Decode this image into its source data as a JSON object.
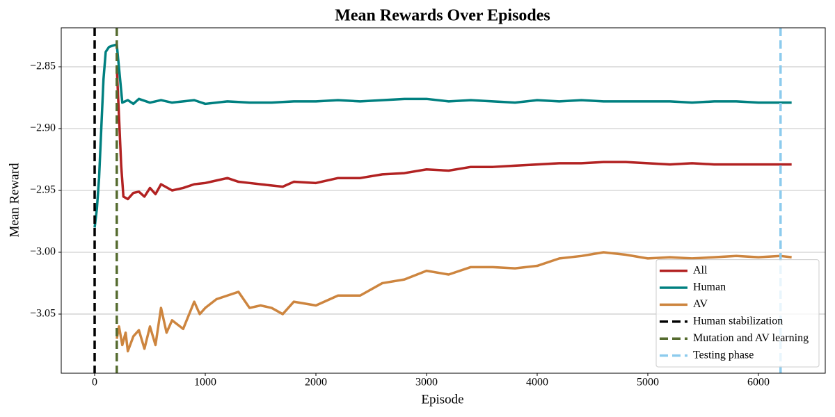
{
  "chart_data": {
    "type": "line",
    "title": "Mean Rewards Over Episodes",
    "x_label": "Episode",
    "y_label": "Mean Reward",
    "xlim": [
      -302,
      6604
    ],
    "ylim": [
      -3.0978,
      -2.8185
    ],
    "xticks": [
      0,
      1000,
      2000,
      3000,
      4000,
      5000,
      6000
    ],
    "yticks": [
      {
        "value": -3.05,
        "label": "−3.05"
      },
      {
        "value": -3.0,
        "label": "−3.00"
      },
      {
        "value": -2.95,
        "label": "−2.95"
      },
      {
        "value": -2.9,
        "label": "−2.90"
      },
      {
        "value": -2.85,
        "label": "−2.85"
      }
    ],
    "grid": "y",
    "legend": "lower right",
    "series": [
      {
        "name": "All",
        "color": "#b22222",
        "x": [
          200,
          220,
          240,
          260,
          300,
          350,
          400,
          450,
          500,
          550,
          600,
          700,
          800,
          900,
          1000,
          1100,
          1200,
          1300,
          1400,
          1500,
          1700,
          1800,
          2000,
          2200,
          2400,
          2600,
          2800,
          3000,
          3200,
          3400,
          3600,
          3800,
          4000,
          4200,
          4400,
          4600,
          4800,
          5000,
          5200,
          5400,
          5600,
          5800,
          6000,
          6200,
          6300
        ],
        "values": [
          -2.85,
          -2.89,
          -2.93,
          -2.955,
          -2.957,
          -2.952,
          -2.951,
          -2.955,
          -2.948,
          -2.953,
          -2.945,
          -2.95,
          -2.948,
          -2.945,
          -2.944,
          -2.942,
          -2.94,
          -2.943,
          -2.944,
          -2.945,
          -2.947,
          -2.943,
          -2.944,
          -2.94,
          -2.94,
          -2.937,
          -2.936,
          -2.933,
          -2.934,
          -2.931,
          -2.931,
          -2.93,
          -2.929,
          -2.928,
          -2.928,
          -2.927,
          -2.927,
          -2.928,
          -2.929,
          -2.928,
          -2.929,
          -2.929,
          -2.929,
          -2.929,
          -2.929
        ]
      },
      {
        "name": "Human",
        "color": "#008080",
        "x": [
          0,
          20,
          40,
          60,
          80,
          100,
          130,
          160,
          200,
          230,
          250,
          300,
          350,
          400,
          500,
          600,
          700,
          800,
          900,
          1000,
          1200,
          1400,
          1600,
          1800,
          2000,
          2200,
          2400,
          2600,
          2800,
          3000,
          3200,
          3400,
          3600,
          3800,
          4000,
          4200,
          4400,
          4600,
          4800,
          5000,
          5200,
          5400,
          5600,
          5800,
          6000,
          6200,
          6300
        ],
        "values": [
          -2.98,
          -2.965,
          -2.94,
          -2.9,
          -2.86,
          -2.838,
          -2.834,
          -2.833,
          -2.832,
          -2.86,
          -2.879,
          -2.877,
          -2.88,
          -2.876,
          -2.879,
          -2.877,
          -2.879,
          -2.878,
          -2.877,
          -2.88,
          -2.878,
          -2.879,
          -2.879,
          -2.878,
          -2.878,
          -2.877,
          -2.878,
          -2.877,
          -2.876,
          -2.876,
          -2.878,
          -2.877,
          -2.878,
          -2.879,
          -2.877,
          -2.878,
          -2.877,
          -2.878,
          -2.878,
          -2.878,
          -2.878,
          -2.879,
          -2.878,
          -2.878,
          -2.879,
          -2.879,
          -2.879
        ]
      },
      {
        "name": "AV",
        "color": "#cd853f",
        "x": [
          200,
          220,
          250,
          280,
          300,
          350,
          400,
          450,
          500,
          550,
          600,
          650,
          700,
          800,
          900,
          950,
          1000,
          1100,
          1200,
          1300,
          1400,
          1500,
          1600,
          1700,
          1800,
          2000,
          2200,
          2400,
          2600,
          2800,
          3000,
          3200,
          3400,
          3600,
          3800,
          4000,
          4200,
          4400,
          4600,
          4800,
          5000,
          5200,
          5400,
          5600,
          5800,
          6000,
          6200,
          6300
        ],
        "values": [
          -3.07,
          -3.06,
          -3.075,
          -3.065,
          -3.08,
          -3.068,
          -3.063,
          -3.078,
          -3.06,
          -3.075,
          -3.045,
          -3.065,
          -3.055,
          -3.062,
          -3.04,
          -3.05,
          -3.045,
          -3.038,
          -3.035,
          -3.032,
          -3.045,
          -3.043,
          -3.045,
          -3.05,
          -3.04,
          -3.043,
          -3.035,
          -3.035,
          -3.025,
          -3.022,
          -3.015,
          -3.018,
          -3.012,
          -3.012,
          -3.013,
          -3.011,
          -3.005,
          -3.003,
          -3.0,
          -3.002,
          -3.005,
          -3.004,
          -3.005,
          -3.004,
          -3.003,
          -3.004,
          -3.003,
          -3.004
        ]
      }
    ],
    "vlines": [
      {
        "name": "Human stabilization",
        "color": "#000000",
        "x": 0
      },
      {
        "name": "Mutation and AV learning",
        "color": "#556b2f",
        "x": 200
      },
      {
        "name": "Testing phase",
        "color": "#8ccbed",
        "x": 6200
      }
    ]
  }
}
